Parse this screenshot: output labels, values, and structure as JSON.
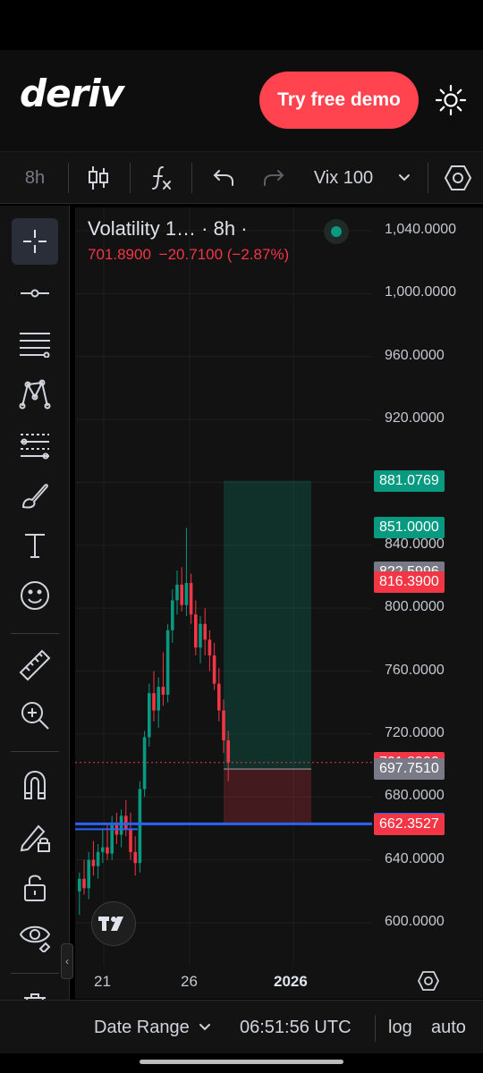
{
  "header": {
    "logo_text": "deriv",
    "demo_button_label": "Try free demo",
    "theme_icon": "sun-icon"
  },
  "toolbar": {
    "interval": "8h",
    "symbol": "Vix 100",
    "icons": [
      "candles-icon",
      "indicators-icon",
      "undo-icon",
      "redo-icon",
      "chevron-down-icon",
      "settings-icon"
    ]
  },
  "drawing_tools": [
    "crosshair-icon",
    "horizontal-ray-icon",
    "parallel-lines-icon",
    "pattern-icon",
    "long-short-position-icon",
    "brush-icon",
    "text-icon",
    "emoji-icon",
    "ruler-icon",
    "zoom-in-icon",
    "magnet-icon",
    "lock-drawings-icon",
    "unlock-icon",
    "eye-icon",
    "trash-icon"
  ],
  "legend": {
    "title": "Volatility 1… · 8h ·",
    "last_price": "701.8900",
    "change": "−20.7100",
    "change_pct": "(−2.87%)",
    "status_color": "#089981"
  },
  "colors": {
    "up": "#089981",
    "down": "#f23645",
    "accent_blue": "#2962ff",
    "brand_red": "#ff444f"
  },
  "chart_data": {
    "type": "candlestick",
    "y_ticks": [
      "1,040.0000",
      "1,000.0000",
      "960.0000",
      "920.0000",
      "880.0000",
      "840.0000",
      "800.0000",
      "760.0000",
      "720.0000",
      "680.0000",
      "640.0000",
      "600.0000"
    ],
    "y_tick_values": [
      1040,
      1000,
      960,
      920,
      880,
      840,
      800,
      760,
      720,
      680,
      640,
      600
    ],
    "ylim": [
      580,
      1055
    ],
    "x_ticks": [
      "21",
      "26",
      "2026"
    ],
    "price_labels": [
      {
        "text": "881.0769",
        "value": 881.0769,
        "color": "#089981"
      },
      {
        "text": "851.0000",
        "value": 851.0,
        "color": "#089981"
      },
      {
        "text": "822.5996",
        "value": 822.5996,
        "color": "#787b86"
      },
      {
        "text": "816.3900",
        "value": 816.39,
        "color": "#f23645"
      },
      {
        "text": "701.8900",
        "value": 701.89,
        "color": "#f23645"
      },
      {
        "text": "697.7510",
        "value": 697.751,
        "color": "#787b86"
      },
      {
        "text": "662.8800",
        "value": 662.88,
        "color": "#2962ff"
      },
      {
        "text": "662.3527",
        "value": 662.3527,
        "color": "#f23645"
      }
    ],
    "position": {
      "entry": 697.751,
      "target": 881.0769,
      "stop": 662.3527
    },
    "horizontal_line": 662.88,
    "candles": [
      [
        620,
        632,
        605,
        628
      ],
      [
        628,
        640,
        618,
        622
      ],
      [
        622,
        645,
        615,
        640
      ],
      [
        640,
        652,
        630,
        636
      ],
      [
        636,
        650,
        628,
        645
      ],
      [
        645,
        660,
        638,
        648
      ],
      [
        648,
        662,
        640,
        644
      ],
      [
        644,
        668,
        640,
        662
      ],
      [
        662,
        670,
        650,
        656
      ],
      [
        656,
        672,
        648,
        668
      ],
      [
        668,
        678,
        655,
        660
      ],
      [
        660,
        670,
        640,
        645
      ],
      [
        645,
        655,
        630,
        638
      ],
      [
        638,
        690,
        632,
        685
      ],
      [
        685,
        722,
        680,
        718
      ],
      [
        718,
        752,
        712,
        746
      ],
      [
        746,
        760,
        728,
        735
      ],
      [
        735,
        756,
        724,
        750
      ],
      [
        750,
        772,
        738,
        745
      ],
      [
        745,
        790,
        740,
        786
      ],
      [
        786,
        812,
        778,
        805
      ],
      [
        805,
        824,
        796,
        815
      ],
      [
        815,
        826,
        798,
        802
      ],
      [
        802,
        851,
        795,
        816
      ],
      [
        816,
        822,
        790,
        796
      ],
      [
        796,
        805,
        770,
        775
      ],
      [
        775,
        795,
        765,
        790
      ],
      [
        790,
        800,
        770,
        780
      ],
      [
        780,
        786,
        760,
        770
      ],
      [
        770,
        778,
        748,
        752
      ],
      [
        752,
        762,
        728,
        735
      ],
      [
        735,
        742,
        708,
        716
      ],
      [
        716,
        722,
        690,
        701.89
      ]
    ]
  },
  "bottom_bar": {
    "date_range_label": "Date Range",
    "time": "06:51:56 UTC",
    "log_label": "log",
    "auto_label": "auto"
  }
}
